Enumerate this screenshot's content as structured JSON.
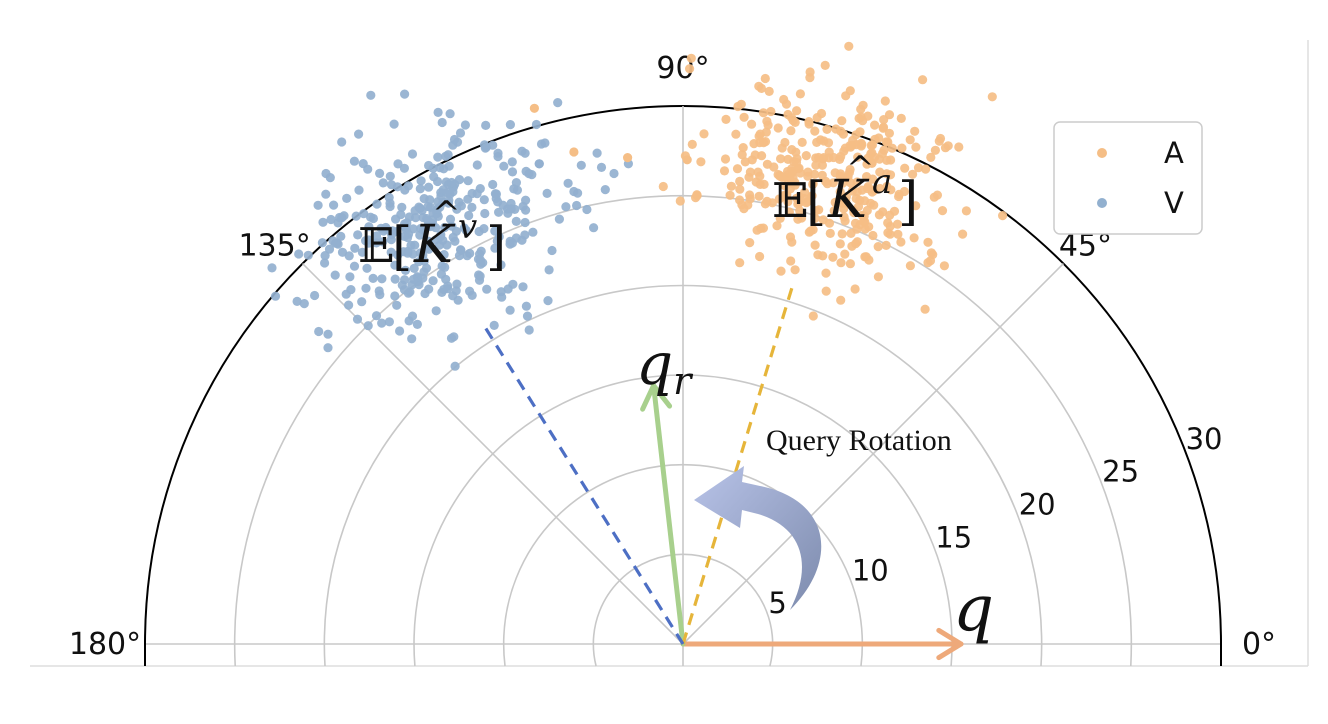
{
  "chart_data": {
    "type": "scatter",
    "projection": "polar",
    "theta_range_deg": [
      0,
      180
    ],
    "r_range": [
      0,
      30
    ],
    "r_ticks": [
      5,
      10,
      15,
      20,
      25,
      30
    ],
    "theta_ticks": [
      0,
      45,
      90,
      135,
      180
    ],
    "theta_tick_labels": [
      "0°",
      "45°",
      "90°",
      "135°",
      "180°"
    ],
    "r_tick_labels": [
      "5",
      "10",
      "15",
      "20",
      "25",
      "30"
    ],
    "grid": true,
    "legend": {
      "placement": "top-right"
    },
    "series": [
      {
        "name": "A",
        "color": "#f5be86",
        "theta_center_deg": 73,
        "r_center": 27.5,
        "theta_spread_deg": 7,
        "r_spread": 2.6,
        "count": 360,
        "seed": 11
      },
      {
        "name": "V",
        "color": "#92b0cf",
        "theta_center_deg": 120,
        "r_center": 27.2,
        "theta_spread_deg": 8,
        "r_spread": 2.6,
        "count": 360,
        "seed": 23
      }
    ],
    "outliers": [
      {
        "series": "A",
        "theta_deg": 105.5,
        "r": 31.0
      },
      {
        "series": "A",
        "theta_deg": 96.5,
        "r": 27.3
      },
      {
        "series": "A",
        "theta_deg": 102.5,
        "r": 28.1
      },
      {
        "series": "A",
        "theta_deg": 89.5,
        "r": 27.0
      }
    ],
    "vectors": [
      {
        "label": "q",
        "theta_deg": 0,
        "r": 15.5,
        "color": "#eea97a",
        "style": "solid"
      },
      {
        "label": "q_r",
        "theta_deg": 96.5,
        "r": 14.5,
        "color": "#a8d08d",
        "style": "solid"
      },
      {
        "label": "E[K^a]",
        "theta_deg": 73,
        "r": 20.8,
        "color": "#e6b53a",
        "style": "dashed"
      },
      {
        "label": "E[K^v]",
        "theta_deg": 122,
        "r": 21.0,
        "color": "#4d6fc4",
        "style": "dashed"
      }
    ],
    "annotations": {
      "rotation_text": "Query Rotation",
      "label_q": "q",
      "label_qr_base": "q",
      "label_qr_sub": "r",
      "label_ka_bb": "𝔼",
      "label_ka_base": "K",
      "label_ka_sup": "a",
      "label_kv_bb": "𝔼",
      "label_kv_base": "K",
      "label_kv_sup": "v"
    }
  },
  "colors": {
    "grid": "#c8c8c8",
    "frame": "#000000",
    "rotation_arrow_start": "#b8c3e8",
    "rotation_arrow_end": "#7d8bad"
  }
}
